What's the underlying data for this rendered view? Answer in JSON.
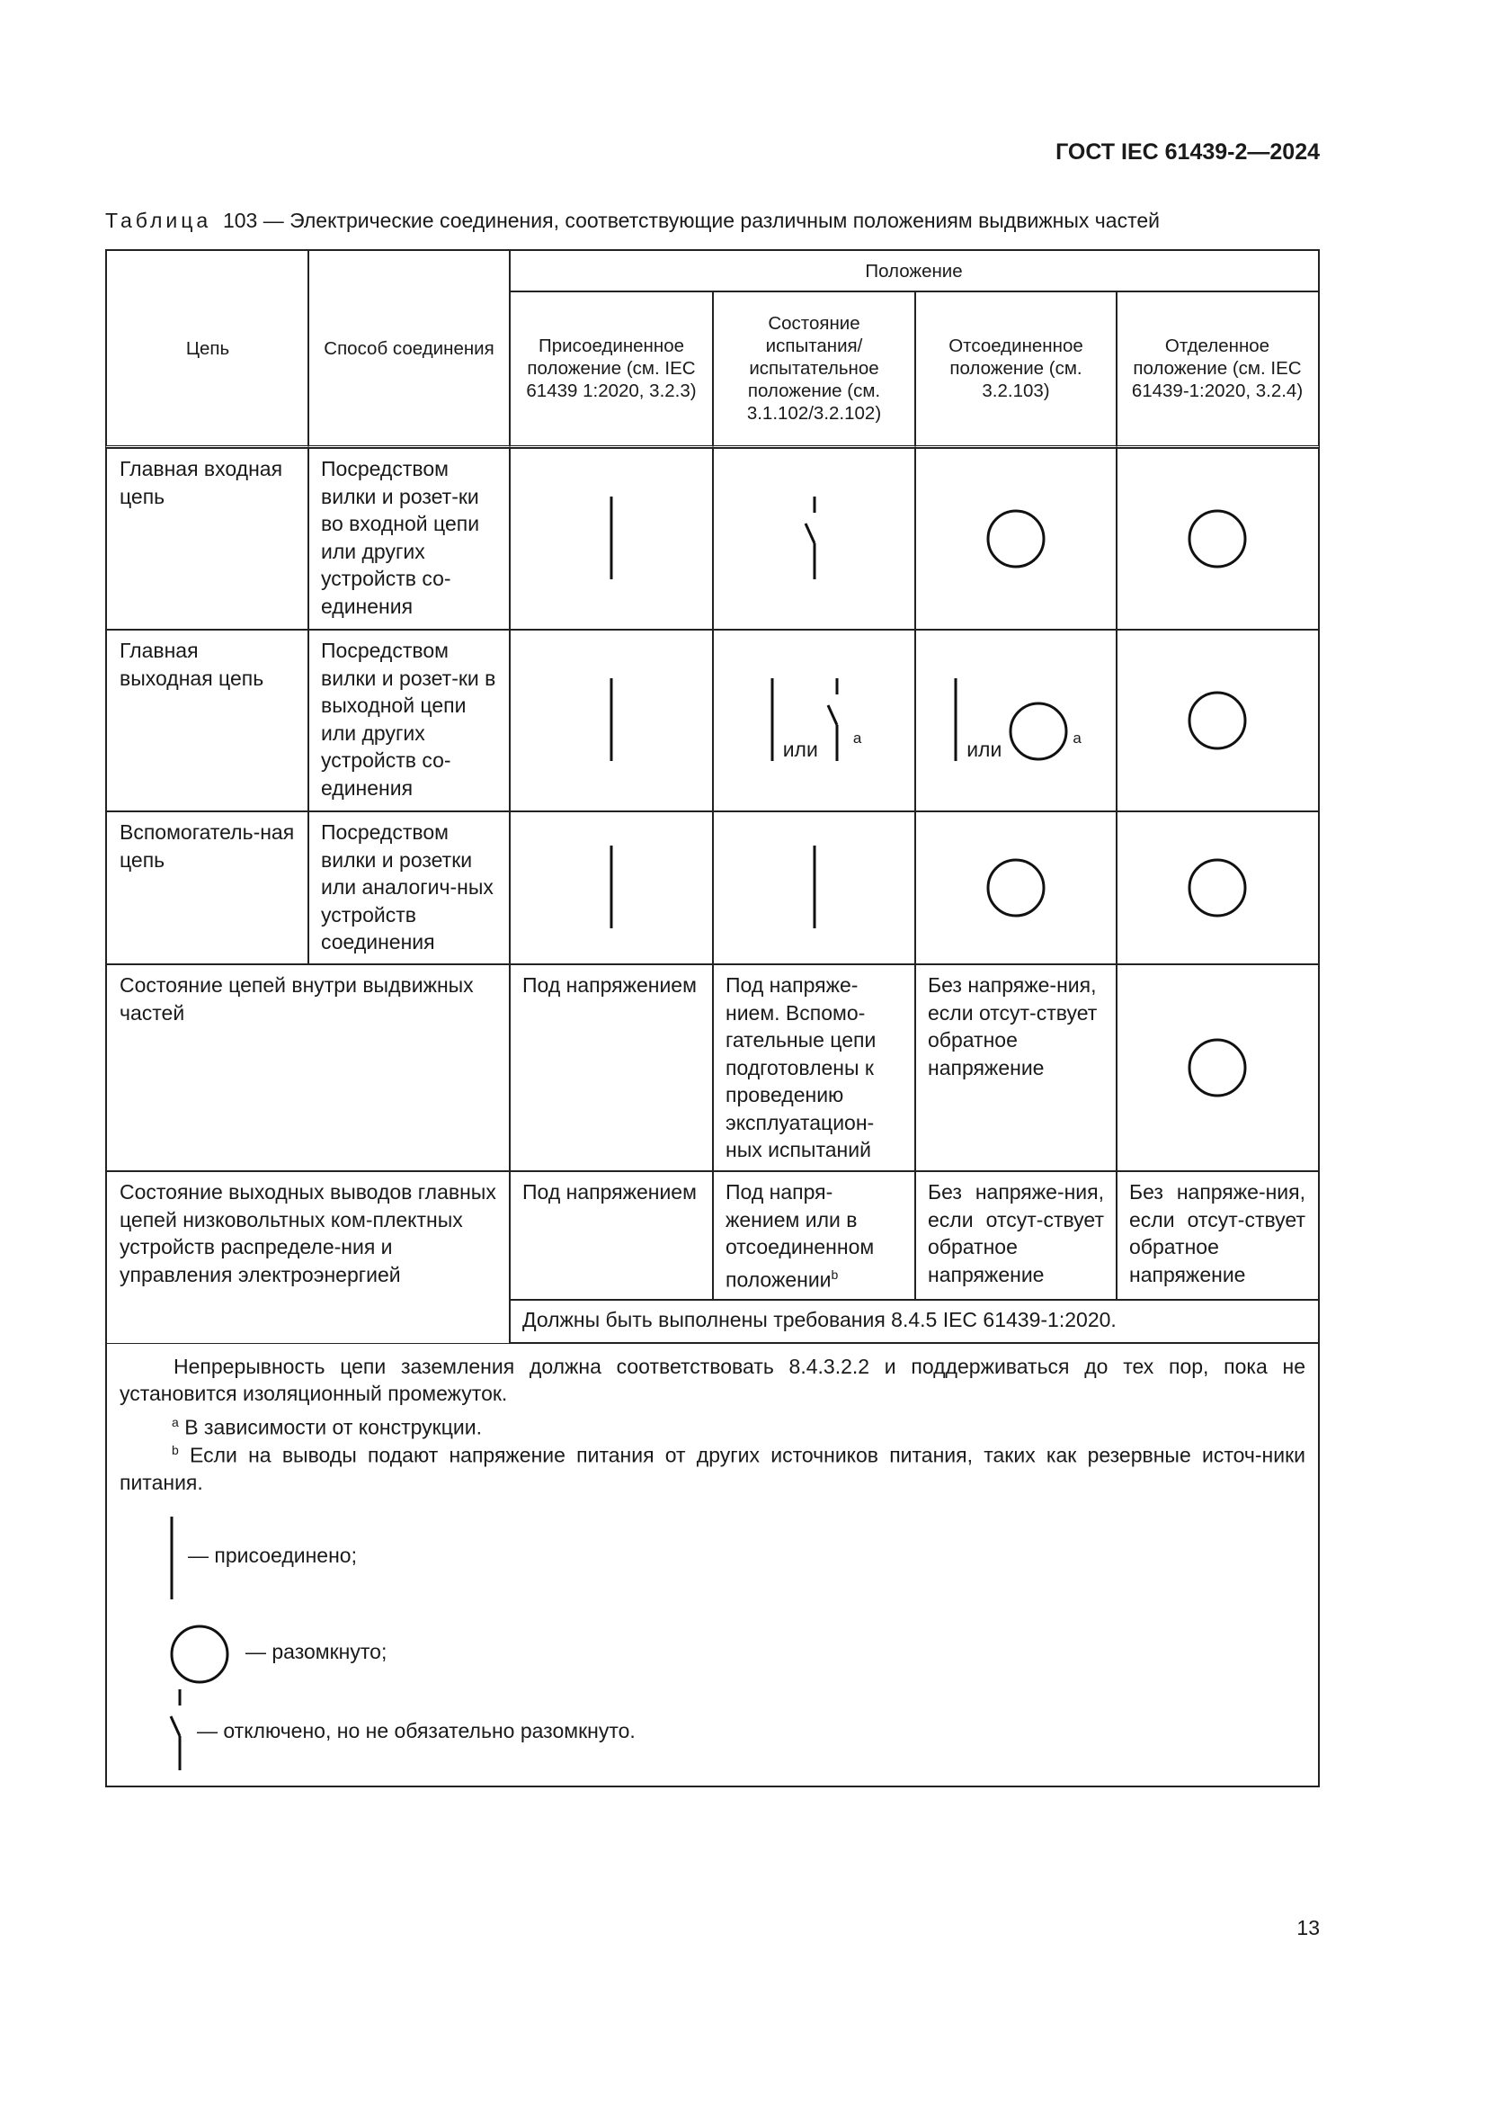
{
  "header": {
    "doc_id": "ГОСТ IEC 61439-2—2024"
  },
  "caption": {
    "label": "Таблица",
    "text": "103 — Электрические соединения, соответствующие различным положениям выдвижных частей"
  },
  "table": {
    "headers": {
      "circuit": "Цепь",
      "method": "Способ соединения",
      "position": "Положение",
      "positions": [
        "Присоединенное положение (см. IEC 61439 1:2020, 3.2.3)",
        "Состояние испытания/ испытательное положение (см. 3.1.102/3.2.102)",
        "Отсоединенное положение (см. 3.2.103)",
        "Отделенное положение (см. IEC 61439-1:2020, 3.2.4)"
      ]
    },
    "rows": [
      {
        "circuit": "Главная входная цепь",
        "method": "Посредством вилки и розет-ки во входной цепи или других устройств со-единения",
        "symbols": [
          "connected",
          "disconnected-switch",
          "open",
          "open"
        ]
      },
      {
        "circuit": "Главная выходная цепь",
        "method": "Посредством вилки и розет-ки в выходной цепи или других устройств со-единения",
        "symbols": [
          "connected",
          "connected-or-switch",
          "connected-or-open",
          "open"
        ],
        "or_label": "или",
        "footnote_mark": "a"
      },
      {
        "circuit": "Вспомогатель-ная цепь",
        "method": "Посредством вилки и розетки или аналогич-ных устройств соединения",
        "symbols": [
          "connected",
          "connected",
          "open",
          "open"
        ]
      }
    ],
    "state_inside": {
      "label": "Состояние цепей внутри выдвижных частей",
      "values": [
        "Под напряжением",
        "Под напряже-нием. Вспомо-гательные цепи подготовлены к проведению эксплуатацион-ных испытаний",
        "Без напряже-ния, если отсут-ствует обратное напряжение"
      ],
      "last_symbol": "open"
    },
    "state_outputs": {
      "label": "Состояние выходных выводов главных цепей низковольтных ком-плектных устройств распределе-ния и управления электроэнергией",
      "values": [
        "Под напряжением",
        "Под напря-жением или в отсоединенном положении",
        "Без напряже-ния, если отсут-ствует обратное напряжение",
        "Без напряже-ния, если отсут-ствует обратное напряжение"
      ],
      "footnote_mark": "b",
      "requirement": "Должны быть выполнены требования 8.4.5 IEC 61439-1:2020."
    }
  },
  "notes": {
    "continuity": "Непрерывность цепи заземления должна соответствовать 8.4.3.2.2 и поддерживаться до тех пор, пока не установится изоляционный промежуток.",
    "footnote_a_mark": "a",
    "footnote_a": "В зависимости от конструкции.",
    "footnote_b_mark": "b",
    "footnote_b": "Если на выводы подают напряжение питания от других источников питания, таких как резервные источ-ники питания.",
    "legend": [
      {
        "symbol": "connected",
        "text": "— присоединено;"
      },
      {
        "symbol": "open",
        "text": "— разомкнуто;"
      },
      {
        "symbol": "disconnected-switch",
        "text": "— отключено, но не обязательно разомкнуто."
      }
    ]
  },
  "page_number": "13"
}
